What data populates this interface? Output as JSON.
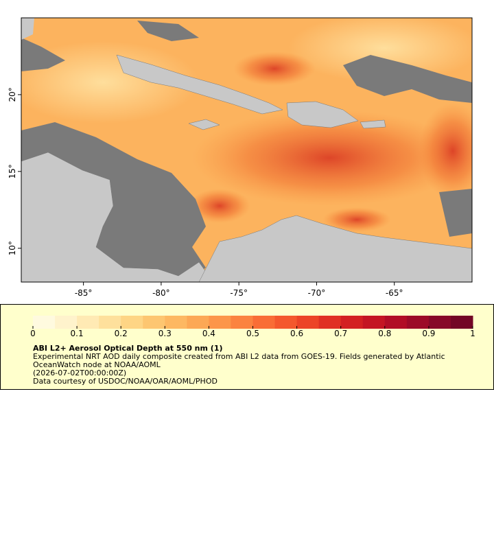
{
  "map": {
    "lon_axis": {
      "xlim": [
        -89,
        -60
      ],
      "xticks": [
        {
          "value": -85,
          "label": "-85°"
        },
        {
          "value": -80,
          "label": "-80°"
        },
        {
          "value": -75,
          "label": "-75°"
        },
        {
          "value": -70,
          "label": "-70°"
        },
        {
          "value": -65,
          "label": "-65°"
        }
      ]
    },
    "lat_axis": {
      "ylim": [
        7.8,
        25
      ],
      "yticks": [
        {
          "value": 10,
          "label": "10°"
        },
        {
          "value": 15,
          "label": "15°"
        },
        {
          "value": 20,
          "label": "20°"
        }
      ]
    }
  },
  "colorbar": {
    "range": [
      0,
      1
    ],
    "ticks": [
      0,
      0.1,
      0.2,
      0.3,
      0.4,
      0.5,
      0.6,
      0.7,
      0.8,
      0.9,
      1
    ],
    "colors": [
      "#fffadf",
      "#fff3cc",
      "#ffeab4",
      "#fee09c",
      "#fed585",
      "#fdc671",
      "#fdb862",
      "#fca855",
      "#fc964a",
      "#fb8340",
      "#f96d36",
      "#f4582d",
      "#ec4427",
      "#e03024",
      "#d32022",
      "#c41523",
      "#b10d26",
      "#9c0a28",
      "#870829",
      "#730626"
    ]
  },
  "legend": {
    "title": "ABI L2+ Aerosol Optical Depth at 550 nm (1)",
    "description": [
      "Experimental NRT AOD daily composite created from ABI L2 data from GOES-19. Fields generated by Atlantic",
      "OceanWatch node at NOAA/AOML"
    ],
    "date": "(2026-07-02T00:00:00Z)",
    "credit": "Data courtesy of USDOC/NOAA/OAR/AOML/PHOD"
  }
}
